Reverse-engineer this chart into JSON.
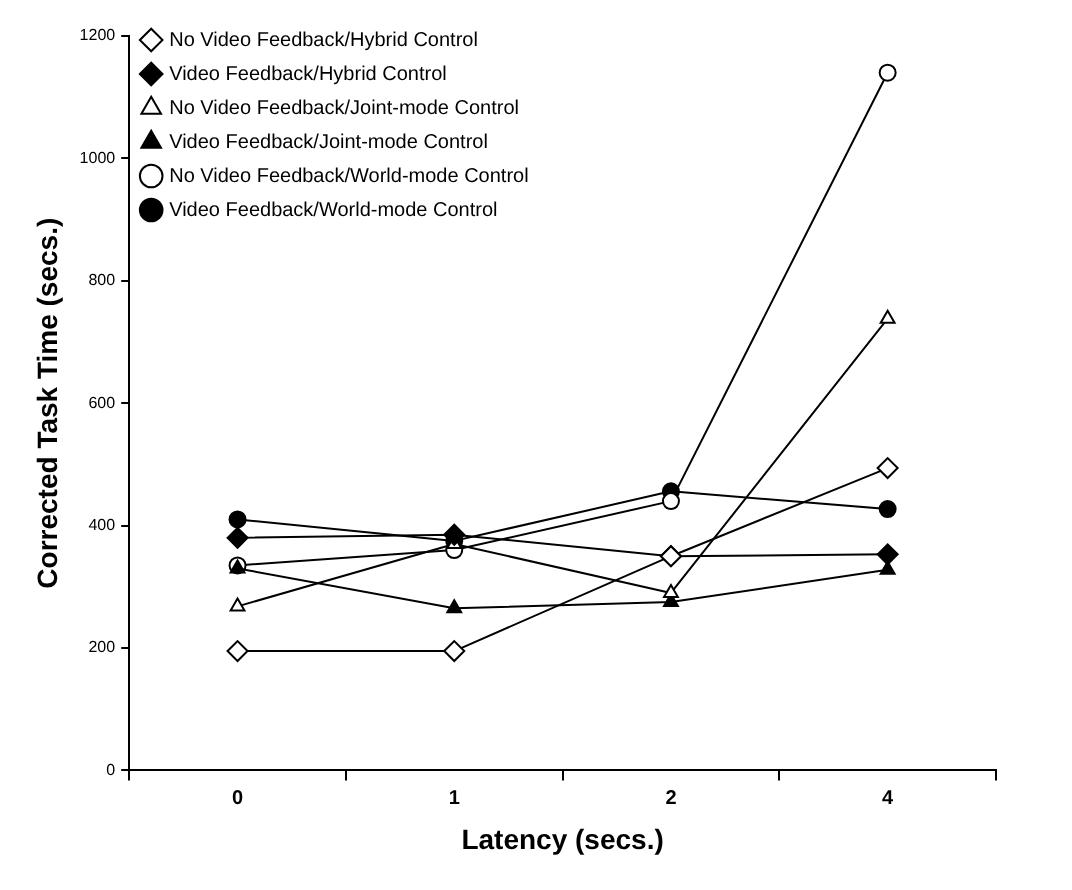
{
  "chart_data": {
    "type": "line",
    "xlabel": "Latency (secs.)",
    "ylabel": "Corrected Task Time (secs.)",
    "categories": [
      "0",
      "1",
      "2",
      "4"
    ],
    "ylim": [
      0,
      1200
    ],
    "yticks": [
      0,
      200,
      400,
      600,
      800,
      1000,
      1200
    ],
    "grid": false,
    "legend": "top left",
    "series": [
      {
        "name": "No Video Feedback/Hybrid Control",
        "color": "#000000",
        "marker": "diamond",
        "values": [
          195,
          195,
          350,
          494
        ]
      },
      {
        "name": "Video Feedback/Hybrid Control",
        "color": "#000000",
        "marker": "diamond",
        "values": [
          380,
          385,
          350,
          353
        ]
      },
      {
        "name": "No Video Feedback/Joint-mode Control",
        "color": "#000000",
        "marker": "triangle",
        "values": [
          268,
          370,
          290,
          738
        ]
      },
      {
        "name": "Video Feedback/Joint-mode Control",
        "color": "#000000",
        "marker": "triangle",
        "values": [
          330,
          265,
          275,
          328
        ]
      },
      {
        "name": "No Video Feedback/World-mode Control",
        "color": "#000000",
        "marker": "circle",
        "values": [
          335,
          360,
          440,
          1140
        ]
      },
      {
        "name": "Video Feedback/World-mode Control",
        "color": "#000000",
        "marker": "circle",
        "values": [
          410,
          375,
          456,
          427
        ]
      }
    ]
  }
}
